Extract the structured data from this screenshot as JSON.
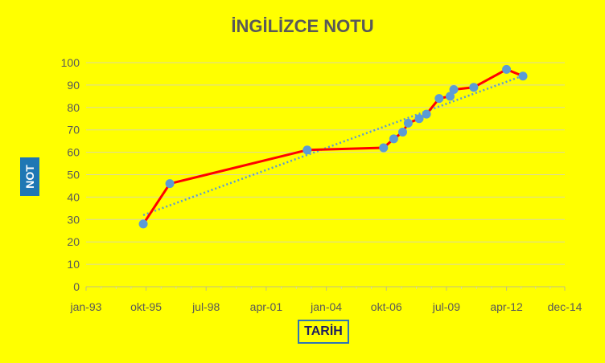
{
  "chart_data": {
    "type": "line",
    "title": "İNGİLİZCE NOTU",
    "xlabel": "TARİH",
    "ylabel": "NOT",
    "ylim": [
      0,
      100
    ],
    "y_ticks": [
      0,
      10,
      20,
      30,
      40,
      50,
      60,
      70,
      80,
      90,
      100
    ],
    "xlim": [
      "1993-01-01",
      "2014-12-01"
    ],
    "x_ticks": [
      {
        "date": "1993-01-01",
        "label": "jan-93"
      },
      {
        "date": "1995-10-01",
        "label": "okt-95"
      },
      {
        "date": "1998-07-01",
        "label": "jul-98"
      },
      {
        "date": "2001-04-01",
        "label": "apr-01"
      },
      {
        "date": "2004-01-01",
        "label": "jan-04"
      },
      {
        "date": "2006-10-01",
        "label": "okt-06"
      },
      {
        "date": "2009-07-01",
        "label": "jul-09"
      },
      {
        "date": "2012-04-01",
        "label": "apr-12"
      },
      {
        "date": "2014-12-01",
        "label": "dec-14"
      }
    ],
    "grid": true,
    "trendline": {
      "type": "linear",
      "style": "dotted"
    },
    "series": [
      {
        "points": [
          {
            "x": "1995-08-15",
            "y": 28
          },
          {
            "x": "1996-11-01",
            "y": 46
          },
          {
            "x": "2003-02-15",
            "y": 61
          },
          {
            "x": "2006-08-15",
            "y": 62
          },
          {
            "x": "2007-02-01",
            "y": 66
          },
          {
            "x": "2007-07-01",
            "y": 69
          },
          {
            "x": "2007-10-01",
            "y": 73
          },
          {
            "x": "2008-04-01",
            "y": 75
          },
          {
            "x": "2008-08-01",
            "y": 77
          },
          {
            "x": "2009-03-01",
            "y": 84
          },
          {
            "x": "2009-09-01",
            "y": 85
          },
          {
            "x": "2009-11-01",
            "y": 88
          },
          {
            "x": "2010-10-01",
            "y": 89
          },
          {
            "x": "2012-04-01",
            "y": 97
          },
          {
            "x": "2013-01-01",
            "y": 94
          }
        ]
      }
    ]
  },
  "colors": {
    "background": "#ffff00",
    "line": "#ff0000",
    "marker": "#5b9bd5",
    "trendline": "#5b9bd5",
    "grid": "#d9d9a0",
    "title": "#595959",
    "ylabel_box": "#1f77b4",
    "xlabel_border": "#2e75b6"
  }
}
